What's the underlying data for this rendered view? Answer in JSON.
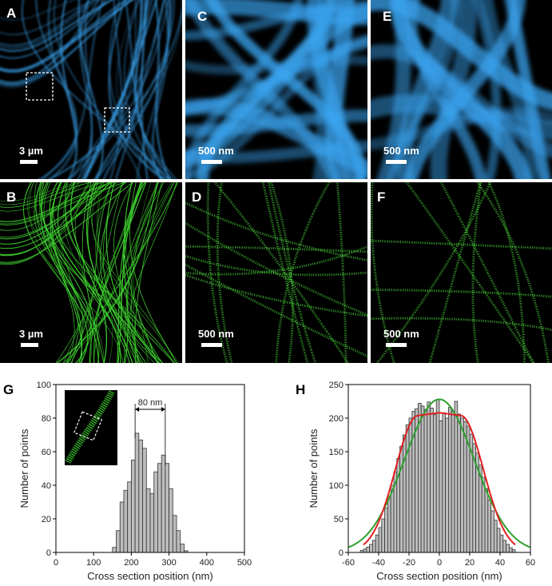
{
  "panels": {
    "A": {
      "label": "A",
      "scale": "3 µm"
    },
    "B": {
      "label": "B",
      "scale": "3 µm"
    },
    "C": {
      "label": "C",
      "scale": "500 nm"
    },
    "D": {
      "label": "D",
      "scale": "500 nm"
    },
    "E": {
      "label": "E",
      "scale": "500 nm"
    },
    "F": {
      "label": "F",
      "scale": "500 nm"
    }
  },
  "colors": {
    "widefield": "#3aa4f0",
    "storm": "#3ecf2e",
    "hist_bar": "#bdbdbd",
    "fit_red": "#e02020",
    "fit_green": "#2ca02c"
  },
  "chart_data": [
    {
      "type": "bar",
      "panel": "G",
      "label": "G",
      "xlabel": "Cross section position (nm)",
      "ylabel": "Number of points",
      "xlim": [
        0,
        500
      ],
      "ylim": [
        0,
        100
      ],
      "xticks": [
        "0",
        "100",
        "200",
        "300",
        "400",
        "500"
      ],
      "yticks": [
        "0",
        "20",
        "40",
        "60",
        "80",
        "100"
      ],
      "bin_width": 10,
      "x": [
        150,
        160,
        170,
        180,
        190,
        200,
        210,
        220,
        230,
        240,
        250,
        260,
        270,
        280,
        290,
        300,
        310,
        320,
        330,
        340
      ],
      "values": [
        3,
        13,
        30,
        37,
        42,
        55,
        71,
        67,
        62,
        38,
        35,
        48,
        53,
        58,
        53,
        38,
        22,
        13,
        5,
        1
      ],
      "annotation": "80 nm",
      "annotation_span": [
        210,
        290
      ]
    },
    {
      "type": "bar",
      "panel": "H",
      "label": "H",
      "xlabel": "Cross section position (nm)",
      "ylabel": "Number of points",
      "xlim": [
        -60,
        60
      ],
      "ylim": [
        0,
        250
      ],
      "xticks": [
        "-60",
        "-40",
        "-20",
        "0",
        "20",
        "40",
        "60"
      ],
      "yticks": [
        "0",
        "50",
        "100",
        "150",
        "200",
        "250"
      ],
      "bin_width": 2,
      "x": [
        -52,
        -50,
        -48,
        -46,
        -44,
        -42,
        -40,
        -38,
        -36,
        -34,
        -32,
        -30,
        -28,
        -26,
        -24,
        -22,
        -20,
        -18,
        -16,
        -14,
        -12,
        -10,
        -8,
        -6,
        -4,
        -2,
        0,
        2,
        4,
        6,
        8,
        10,
        12,
        14,
        16,
        18,
        20,
        22,
        24,
        26,
        28,
        30,
        32,
        34,
        36,
        38,
        40,
        42,
        44,
        46,
        48
      ],
      "values": [
        3,
        5,
        8,
        12,
        18,
        26,
        37,
        50,
        66,
        84,
        100,
        120,
        140,
        158,
        175,
        190,
        200,
        210,
        214,
        222,
        218,
        213,
        224,
        215,
        205,
        228,
        196,
        208,
        200,
        216,
        210,
        225,
        206,
        200,
        195,
        188,
        176,
        162,
        148,
        130,
        112,
        95,
        78,
        62,
        48,
        36,
        26,
        18,
        12,
        7,
        4
      ],
      "fit_red": {
        "amplitude": 208,
        "center": 0,
        "plateau_halfwidth": 14,
        "sigma": 15
      },
      "fit_green": {
        "amplitude": 228,
        "center": 0,
        "sigma": 23
      }
    }
  ]
}
